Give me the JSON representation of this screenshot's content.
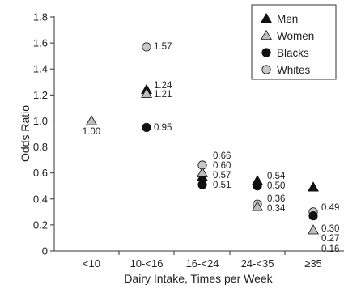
{
  "chart_data": {
    "type": "scatter",
    "xlabel": "Dairy Intake, Times per Week",
    "ylabel": "Odds Ratio",
    "categories": [
      "<10",
      "10-<16",
      "16-<24",
      "24-<35",
      "≥35"
    ],
    "ylim": [
      0,
      1.8
    ],
    "yticks": [
      "0",
      "0.2",
      "0.4",
      "0.6",
      "0.8",
      "1.0",
      "1.2",
      "1.4",
      "1.6",
      "1.8"
    ],
    "reference_line": 1.0,
    "legend_position": "top-right",
    "series": [
      {
        "name": "Men",
        "marker": "triangle",
        "color": "#111111",
        "values": [
          1.0,
          1.24,
          0.57,
          0.54,
          0.49
        ]
      },
      {
        "name": "Women",
        "marker": "triangle",
        "color": "#bdbdbd",
        "values": [
          1.0,
          1.21,
          0.6,
          0.34,
          0.16
        ]
      },
      {
        "name": "Blacks",
        "marker": "circle",
        "color": "#111111",
        "values": [
          null,
          0.95,
          0.51,
          0.5,
          0.27
        ]
      },
      {
        "name": "Whites",
        "marker": "circle",
        "color": "#c8c8c8",
        "values": [
          null,
          1.57,
          0.66,
          0.36,
          0.3
        ]
      }
    ],
    "data_labels": [
      [
        "1.00"
      ],
      [
        "1.57",
        "1.24",
        "1.21",
        "0.95"
      ],
      [
        "0.66",
        "0.60",
        "0.57",
        "0.51"
      ],
      [
        "0.54",
        "0.50",
        "0.36",
        "0.34"
      ],
      [
        "0.49",
        "0.30",
        "0.27",
        "0.16"
      ]
    ]
  }
}
